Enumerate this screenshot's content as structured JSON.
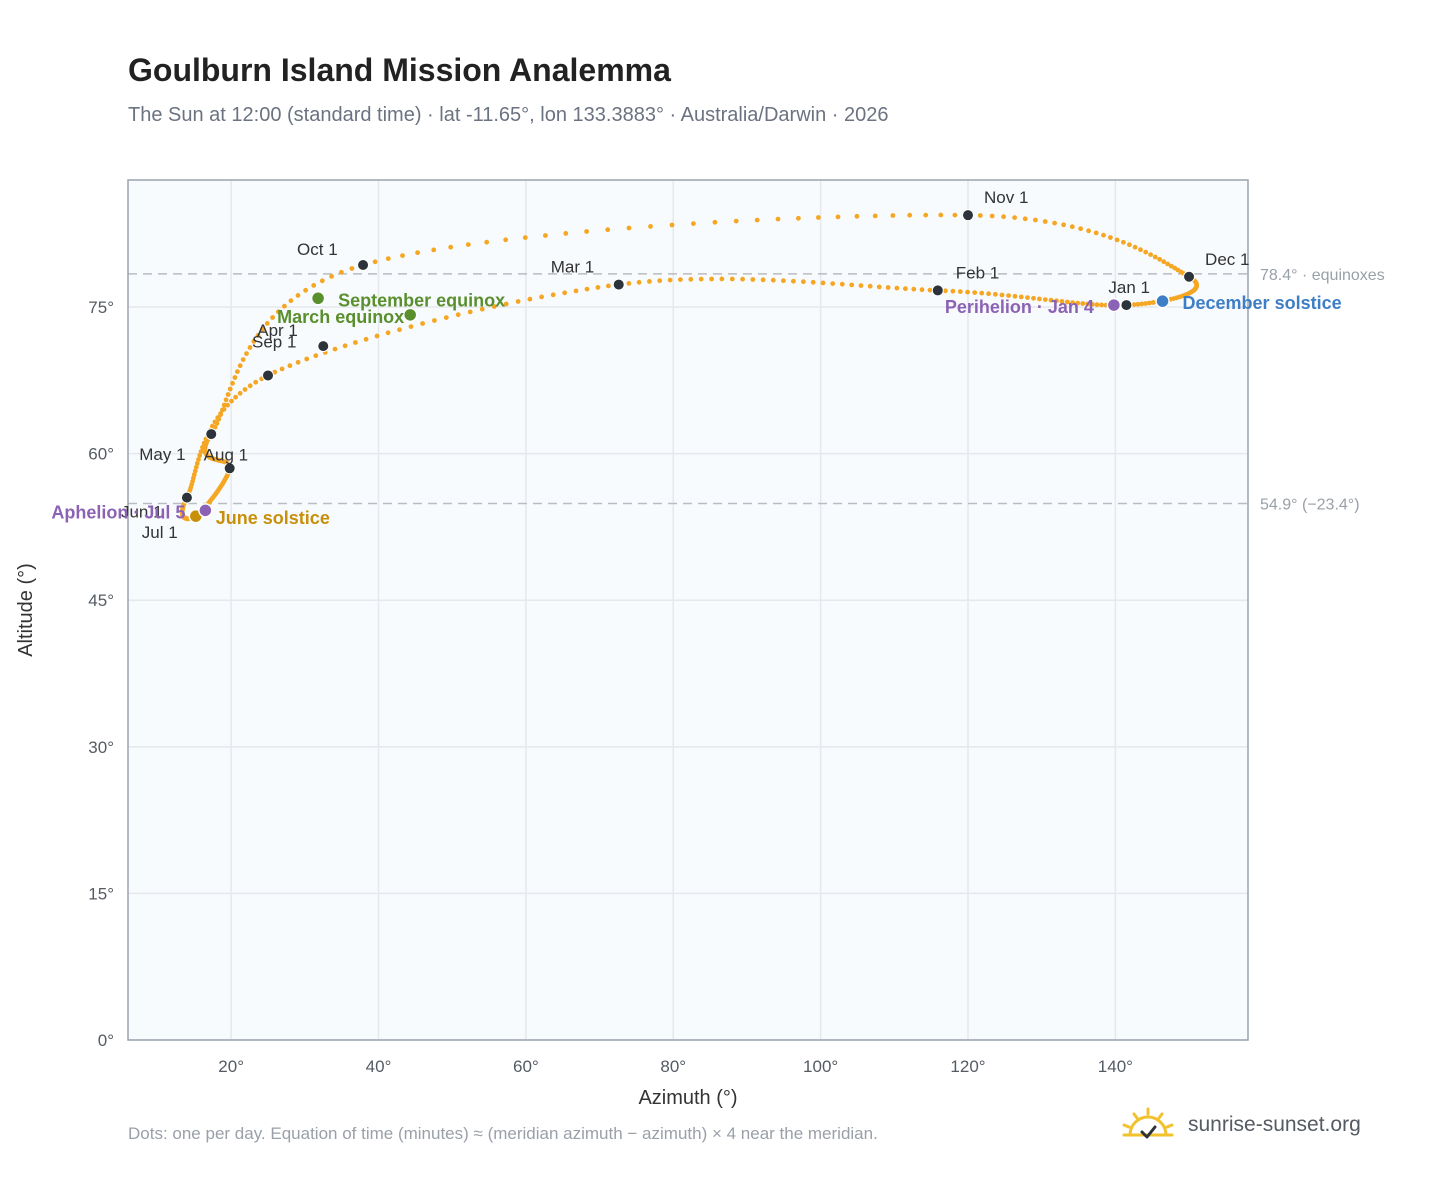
{
  "header": {
    "title": "Goulburn Island Mission Analemma",
    "subtitle": "The Sun at 12:00 (standard time) · lat -11.65°, lon 133.3883° · Australia/Darwin · 2026"
  },
  "footer": {
    "note": "Dots: one per day. Equation of time (minutes) ≈ (meridian azimuth − azimuth) × 4 near the meridian.",
    "brand": "sunrise-sunset.org",
    "brand_icon": "sun-check-icon"
  },
  "colors": {
    "curve": "#f5a623",
    "month_marker": "#2d333b",
    "equinox": "#5a8f2e",
    "june_solstice": "#c8900a",
    "december_solstice": "#3d7ec4",
    "apsis": "#8c63b4",
    "reference_line": "#b8bcc3",
    "grid": "#e5e8ec",
    "plot_background": "#f8fbfe",
    "axis_frame": "#9aa3ae"
  },
  "chart_data": {
    "type": "scatter",
    "xlabel": "Azimuth (°)",
    "ylabel": "Altitude (°)",
    "xlim": [
      6,
      158
    ],
    "ylim": [
      0,
      88
    ],
    "xticks": [
      20,
      40,
      60,
      80,
      100,
      120,
      140
    ],
    "yticks": [
      0,
      15,
      30,
      45,
      60,
      75
    ],
    "grid": true,
    "series": [
      {
        "values": [
          [
            141.5,
            75.2
          ],
          [
            115.9,
            76.7
          ],
          [
            72.6,
            77.3
          ],
          [
            25.0,
            68.0
          ],
          [
            14.0,
            55.5
          ],
          [
            15.2,
            53.6
          ],
          [
            19.8,
            58.5
          ],
          [
            17.3,
            62.0
          ],
          [
            37.9,
            79.3
          ],
          [
            120.0,
            84.4
          ],
          [
            150.0,
            78.1
          ]
        ]
      }
    ],
    "month_markers": [
      {
        "label": "Jan 1",
        "x": 141.5,
        "y": 75.2
      },
      {
        "label": "Feb 1",
        "x": 115.9,
        "y": 76.7
      },
      {
        "label": "Mar 1",
        "x": 72.6,
        "y": 77.3
      },
      {
        "label": "Apr 1",
        "x": 32.5,
        "y": 71.0
      },
      {
        "label": "May 1",
        "x": 17.3,
        "y": 62.0
      },
      {
        "label": "Jun 1",
        "x": 14.0,
        "y": 55.5
      },
      {
        "label": "Jul 1",
        "x": 15.2,
        "y": 53.6
      },
      {
        "label": "Aug 1",
        "x": 19.8,
        "y": 58.5
      },
      {
        "label": "Sep 1",
        "x": 25.0,
        "y": 68.0
      },
      {
        "label": "Oct 1",
        "x": 37.9,
        "y": 79.3
      },
      {
        "label": "Nov 1",
        "x": 120.0,
        "y": 84.4
      },
      {
        "label": "Dec 1",
        "x": 150.0,
        "y": 78.1
      }
    ],
    "events": [
      {
        "label": "March equinox",
        "x": 44.3,
        "y": 74.2
      },
      {
        "label": "September equinox",
        "x": 31.8,
        "y": 75.9
      },
      {
        "label": "June solstice",
        "x": 15.2,
        "y": 53.6
      },
      {
        "label": "December solstice",
        "x": 146.4,
        "y": 75.6
      },
      {
        "label": "Aphelion · Jul 5",
        "x": 16.5,
        "y": 54.2
      },
      {
        "label": "Perihelion · Jan 4",
        "x": 139.8,
        "y": 75.2
      }
    ],
    "reference_lines": [
      {
        "y": 78.4,
        "label": "78.4° · equinoxes"
      },
      {
        "y": 54.9,
        "label": "54.9° (−23.4°)"
      }
    ]
  }
}
